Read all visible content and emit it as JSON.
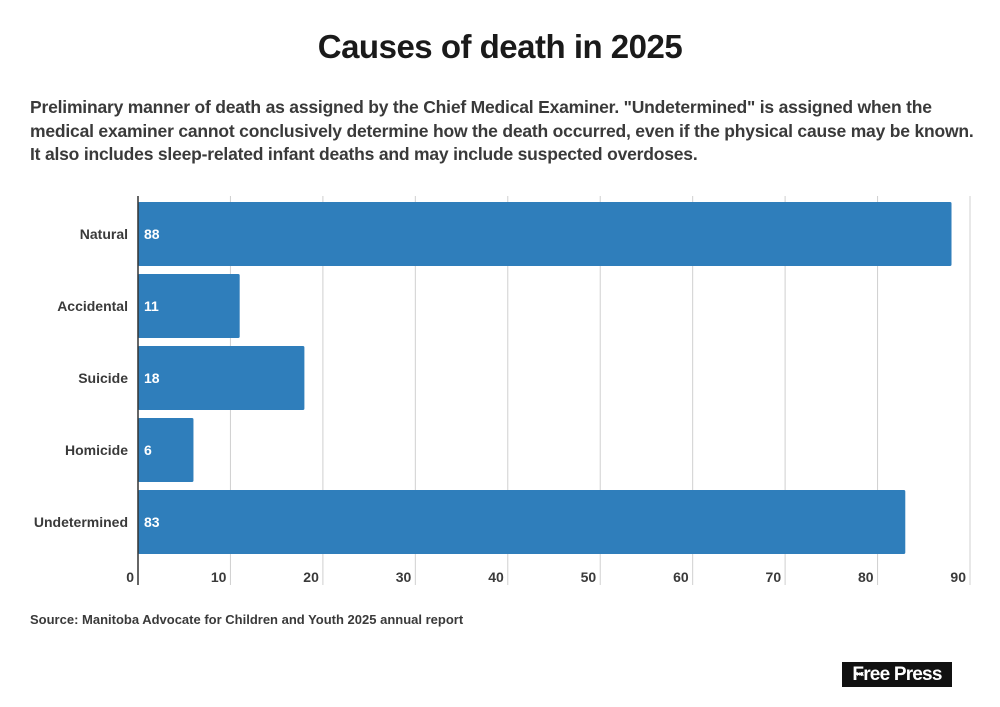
{
  "chart_data": {
    "type": "bar",
    "orientation": "horizontal",
    "title": "Causes of death in 2025",
    "subtitle": "Preliminary manner of death as assigned by the Chief Medical Examiner. \"Undetermined\" is assigned when the medical examiner cannot conclusively determine how the death occurred, even if the physical cause may be known. It also includes sleep-related infant deaths and may include suspected overdoses.",
    "categories": [
      "Natural",
      "Accidental",
      "Suicide",
      "Homicide",
      "Undetermined"
    ],
    "values": [
      88,
      11,
      18,
      6,
      83
    ],
    "xlabel": "",
    "ylabel": "",
    "xlim": [
      0,
      90
    ],
    "xticks": [
      0,
      10,
      20,
      30,
      40,
      50,
      60,
      70,
      80,
      90
    ],
    "grid": true,
    "bar_color": "#2f7ebb",
    "data_labels": true
  },
  "source": "Source: Manitoba Advocate for Children and Youth 2025 annual report",
  "logo": {
    "text": "Free Press",
    "small": "THE"
  }
}
